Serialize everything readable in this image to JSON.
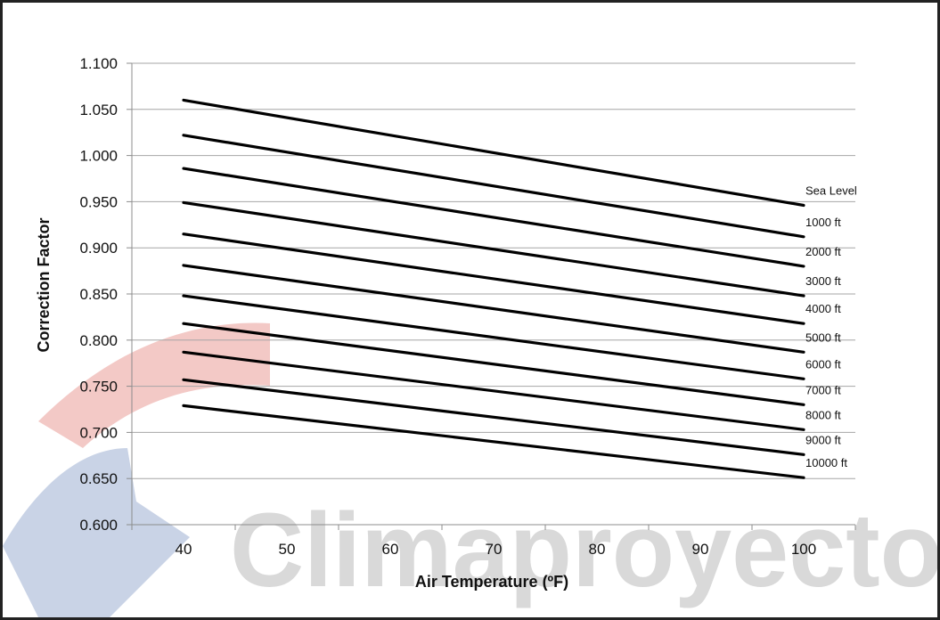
{
  "watermark": {
    "text": "Climaproyecto"
  },
  "colors": {
    "line": "#000000",
    "grid": "#a6a6a6",
    "axis": "#8c8c8c",
    "watermark_text": "#d9d9d9",
    "watermark_red": "#f3c9c6",
    "watermark_blue": "#c9d3e6"
  },
  "chart_data": {
    "type": "line",
    "title": "",
    "xlabel": "Air Temperature (ºF)",
    "ylabel": "Correction Factor",
    "xlim": [
      35,
      105
    ],
    "ylim": [
      0.6,
      1.1
    ],
    "x_ticks": [
      40,
      50,
      60,
      70,
      80,
      90,
      100
    ],
    "x_tick_labels": [
      "40",
      "50",
      "60",
      "70",
      "80",
      "90",
      "100"
    ],
    "y_ticks": [
      0.6,
      0.65,
      0.7,
      0.75,
      0.8,
      0.85,
      0.9,
      0.95,
      1.0,
      1.05,
      1.1
    ],
    "y_tick_labels": [
      "0.600",
      "0.650",
      "0.700",
      "0.750",
      "0.800",
      "0.850",
      "0.900",
      "0.950",
      "1.000",
      "1.050",
      "1.100"
    ],
    "grid": true,
    "legend": "labels at right end of each line",
    "x": [
      40,
      100
    ],
    "series": [
      {
        "name": "Sea Level",
        "values": [
          1.06,
          0.946
        ]
      },
      {
        "name": "1000 ft",
        "values": [
          1.022,
          0.912
        ]
      },
      {
        "name": "2000 ft",
        "values": [
          0.986,
          0.88
        ]
      },
      {
        "name": "3000 ft",
        "values": [
          0.949,
          0.848
        ]
      },
      {
        "name": "4000 ft",
        "values": [
          0.915,
          0.818
        ]
      },
      {
        "name": "5000 ft",
        "values": [
          0.881,
          0.787
        ]
      },
      {
        "name": "6000 ft",
        "values": [
          0.848,
          0.758
        ]
      },
      {
        "name": "7000 ft",
        "values": [
          0.818,
          0.73
        ]
      },
      {
        "name": "8000 ft",
        "values": [
          0.787,
          0.703
        ]
      },
      {
        "name": "9000 ft",
        "values": [
          0.757,
          0.676
        ]
      },
      {
        "name": "10000 ft",
        "values": [
          0.729,
          0.651
        ]
      }
    ]
  }
}
